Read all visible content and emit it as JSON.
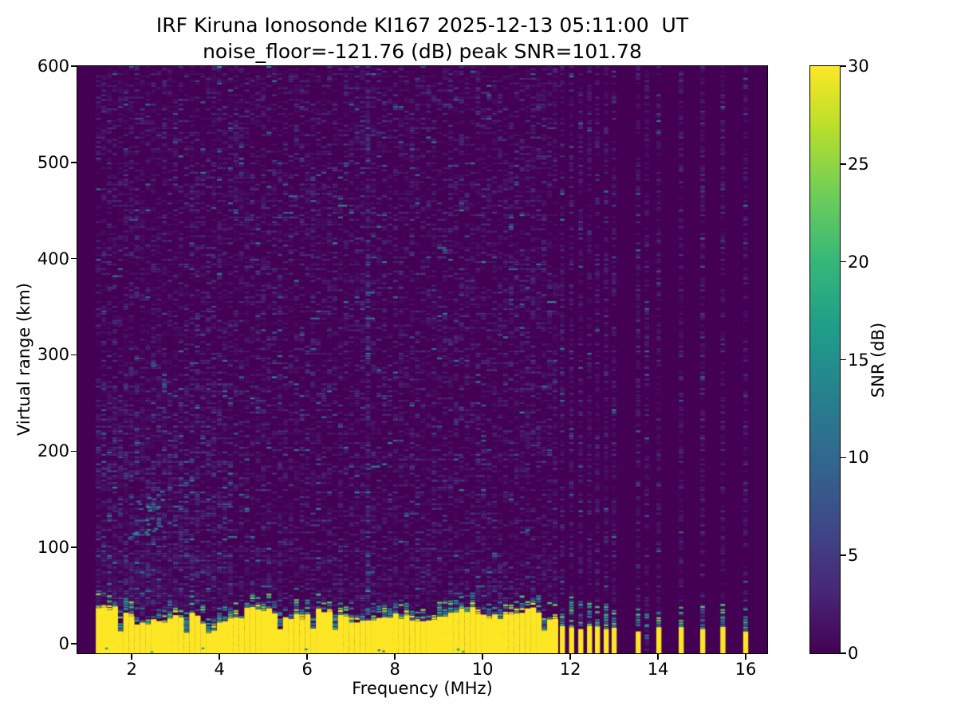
{
  "figure": {
    "title_line1": "IRF Kiruna Ionosonde KI167 2025-12-13 05:11:00  UT",
    "title_line2": "noise_floor=-121.76 (dB) peak SNR=101.78"
  },
  "chart_data": {
    "type": "heatmap",
    "title": "IRF Kiruna Ionosonde KI167 2025-12-13 05:11:00  UT",
    "subtitle": "noise_floor=-121.76 (dB) peak SNR=101.78",
    "xlabel": "Frequency (MHz)",
    "ylabel": "Virtual range (km)",
    "xlim": [
      0.76,
      16.49
    ],
    "ylim": [
      -10,
      600
    ],
    "xticks": [
      2,
      4,
      6,
      8,
      10,
      12,
      14,
      16
    ],
    "yticks": [
      0,
      100,
      200,
      300,
      400,
      500,
      600
    ],
    "grid": false,
    "legend": "none",
    "colorbar": {
      "label": "SNR (dB)",
      "min": 0,
      "max": 30,
      "ticks": [
        0,
        5,
        10,
        15,
        20,
        25,
        30
      ],
      "colormap": "viridis",
      "position": "right"
    },
    "colormap_stops": [
      "#440154",
      "#482878",
      "#3e4a89",
      "#31688e",
      "#26828e",
      "#1f9e89",
      "#35b779",
      "#6dcd59",
      "#b4de2c",
      "#fde725"
    ],
    "noise_floor_db": -121.76,
    "peak_snr_db": 101.78,
    "content": {
      "background_snr_db": 0,
      "noise_speckle_snr_db": [
        1,
        12
      ],
      "continuous_sweep_mhz": [
        1.18,
        11.69
      ],
      "discrete_tones_mhz": [
        11.82,
        12.03,
        12.24,
        12.44,
        12.62,
        12.82,
        13.0,
        13.55,
        13.75,
        14.02,
        14.53,
        15.02,
        15.48,
        16.0
      ],
      "teal_only_tones_mhz": [
        13.75
      ],
      "ground_clutter": {
        "snr_db": 30,
        "top_km_typical": [
          22,
          40
        ],
        "notch_top_km": [
          8,
          16
        ],
        "extends_to_km": -10,
        "transition_snr_db": [
          8,
          25
        ]
      },
      "rfi_enhanced_column_mhz": 7.33,
      "weak_echo_cluster": {
        "freq_mhz": [
          1.85,
          2.75
        ],
        "range_km": [
          108,
          165
        ],
        "snr_db": [
          8,
          16
        ]
      }
    }
  }
}
